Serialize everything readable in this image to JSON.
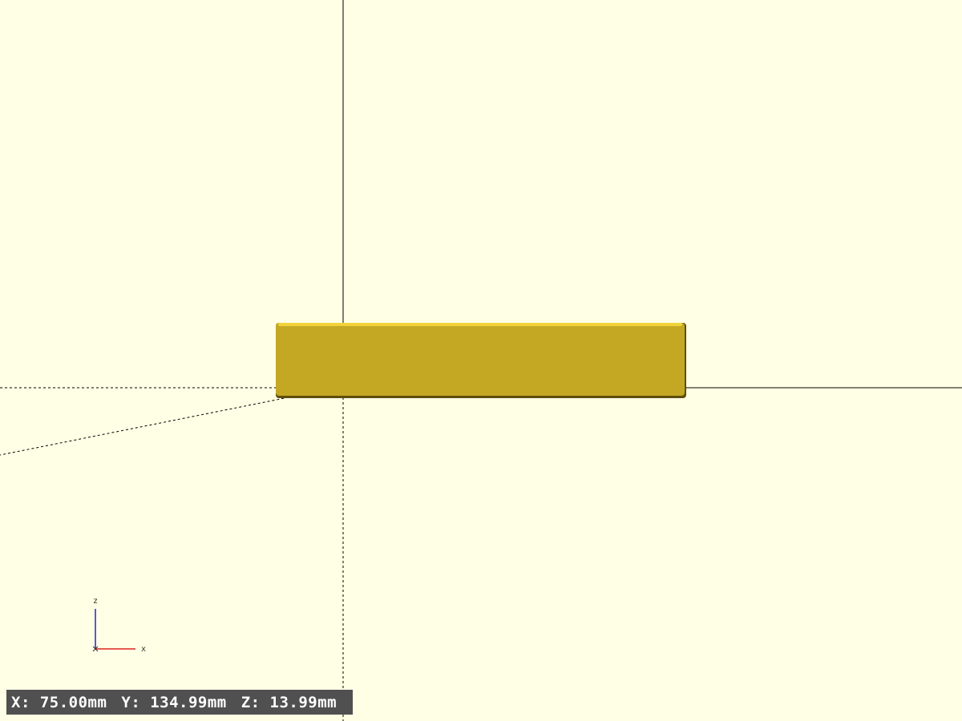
{
  "viewport": {
    "background_color": "#ffffe5",
    "axis_color": "#000000",
    "object_color": "#c4a823",
    "object_highlight_color": "#f2d33a",
    "object_shadow_color": "#5e4e0c"
  },
  "axis_indicator": {
    "z_label": "z",
    "x_label": "x",
    "z_color": "#2222cc",
    "x_color": "#dd2222"
  },
  "status_bar": {
    "x": "X: 75.00mm",
    "y": "Y: 134.99mm",
    "z": "Z: 13.99mm"
  }
}
